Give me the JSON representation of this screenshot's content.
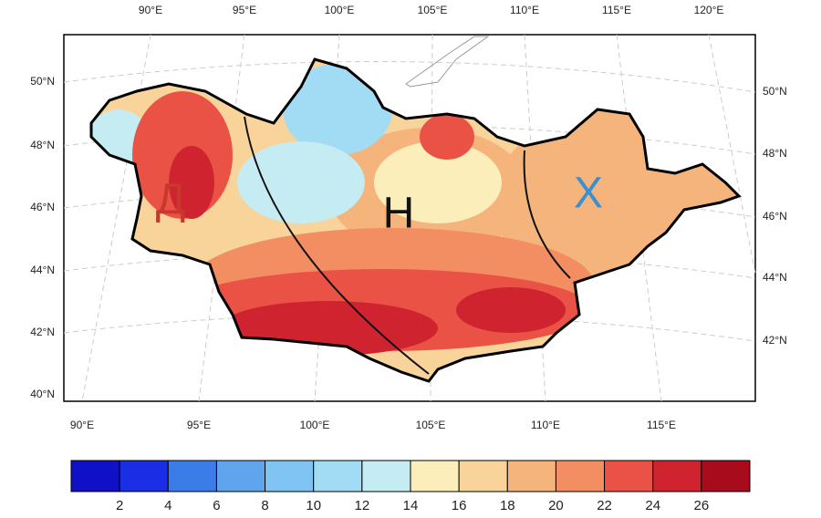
{
  "map": {
    "top_labels": [
      "90°E",
      "95°E",
      "100°E",
      "105°E",
      "110°E",
      "115°E",
      "120°E"
    ],
    "bottom_labels": [
      "90°E",
      "95°E",
      "100°E",
      "105°E",
      "110°E",
      "115°E"
    ],
    "left_labels": [
      "50°N",
      "48°N",
      "46°N",
      "44°N",
      "42°N",
      "40°N"
    ],
    "right_labels": [
      "50°N",
      "48°N",
      "46°N",
      "44°N",
      "42°N"
    ],
    "regions": [
      "Д",
      "Н",
      "Х"
    ]
  },
  "colorbar": {
    "ticks": [
      2,
      4,
      6,
      8,
      10,
      12,
      14,
      16,
      18,
      20,
      22,
      24,
      26
    ],
    "colors": [
      "#1010c8",
      "#1a2ee6",
      "#3b7de8",
      "#5ea5ee",
      "#7fc4f2",
      "#a2dcf4",
      "#c4ecf2",
      "#fbeebb",
      "#f9d49a",
      "#f5b47c",
      "#f38e62",
      "#ea5246",
      "#cf2430",
      "#a80c1c"
    ]
  }
}
